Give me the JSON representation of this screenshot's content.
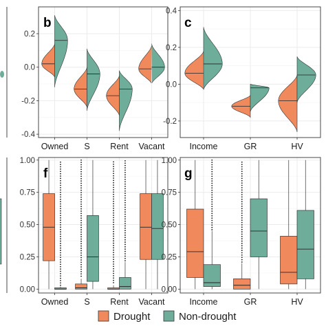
{
  "colors": {
    "drought": "#f08a5d",
    "non_drought": "#6fad9b",
    "grid": "#ebebeb",
    "border": "#333333"
  },
  "legend": {
    "drought_label": "Drought",
    "non_drought_label": "Non-drought",
    "placement": "bottom"
  },
  "chart_data": [
    {
      "panel": "partial-left-top",
      "type": "violin",
      "categories": [],
      "series": []
    },
    {
      "panel": "b",
      "type": "violin",
      "categories": [
        "Owned",
        "S",
        "Rent",
        "Vacant"
      ],
      "ylim": [
        -0.42,
        0.36
      ],
      "yticks": [
        -0.4,
        -0.2,
        0.0,
        0.2
      ],
      "ytick_labels": [
        "-0.4",
        "-0.2",
        "0.0",
        "0.2"
      ],
      "series": [
        {
          "group": "drought",
          "medians": [
            0.02,
            -0.13,
            -0.17,
            -0.01
          ],
          "min": [
            -0.06,
            -0.24,
            -0.29,
            -0.1
          ],
          "max": [
            0.14,
            0.0,
            -0.05,
            0.13
          ]
        },
        {
          "group": "non_drought",
          "medians": [
            0.16,
            -0.04,
            -0.13,
            0.0
          ],
          "min": [
            -0.12,
            -0.26,
            -0.38,
            -0.1
          ],
          "max": [
            0.31,
            0.11,
            -0.02,
            0.14
          ]
        }
      ]
    },
    {
      "panel": "c",
      "type": "violin",
      "categories": [
        "Income",
        "GR",
        "HV"
      ],
      "ylim": [
        -0.29,
        0.42
      ],
      "yticks": [
        -0.2,
        0.0,
        0.2,
        0.4
      ],
      "ytick_labels": [
        "-0.2",
        "0.0",
        "0.2",
        "0.4"
      ],
      "series": [
        {
          "group": "drought",
          "medians": [
            0.06,
            -0.12,
            -0.09
          ],
          "min": [
            -0.03,
            -0.18,
            -0.26
          ],
          "max": [
            0.18,
            -0.06,
            0.05
          ]
        },
        {
          "group": "non_drought",
          "medians": [
            0.11,
            -0.02,
            0.05
          ],
          "min": [
            -0.03,
            -0.15,
            -0.1
          ],
          "max": [
            0.31,
            0.0,
            0.15
          ]
        }
      ]
    },
    {
      "panel": "partial-left-bottom",
      "type": "box",
      "categories": [],
      "series": []
    },
    {
      "panel": "f",
      "type": "box",
      "categories": [
        "Owned",
        "S",
        "Rent",
        "Vacant"
      ],
      "ylim": [
        -0.03,
        1.02
      ],
      "yticks": [
        0.0,
        0.25,
        0.5,
        0.75,
        1.0
      ],
      "ytick_labels": [
        "0.00",
        "0.25",
        "0.50",
        "0.75",
        "1.00"
      ],
      "series": [
        {
          "group": "drought",
          "q1": [
            0.22,
            0.0,
            0.0,
            0.23
          ],
          "median": [
            0.48,
            0.01,
            0.0,
            0.48
          ],
          "q3": [
            0.74,
            0.04,
            0.01,
            0.74
          ],
          "wlow": [
            0.0,
            0.0,
            0.0,
            0.0
          ],
          "whigh": [
            1.0,
            0.08,
            0.03,
            1.0
          ],
          "outliers_from": [
            null,
            0.1,
            0.05,
            null
          ]
        },
        {
          "group": "non_drought",
          "q1": [
            0.0,
            0.06,
            0.0,
            0.23
          ],
          "median": [
            0.0,
            0.25,
            0.02,
            0.47
          ],
          "q3": [
            0.01,
            0.57,
            0.09,
            0.74
          ],
          "wlow": [
            0.0,
            0.0,
            0.0,
            0.0
          ],
          "whigh": [
            0.02,
            1.0,
            0.21,
            1.0
          ],
          "outliers_from": [
            0.03,
            null,
            0.22,
            null
          ]
        }
      ]
    },
    {
      "panel": "g",
      "type": "box",
      "categories": [
        "Income",
        "GR",
        "HV"
      ],
      "ylim": [
        -0.03,
        1.02
      ],
      "yticks": [
        0.0,
        0.25,
        0.5,
        0.75,
        1.0
      ],
      "ytick_labels": [
        "0.00",
        "0.25",
        "0.50",
        "0.75",
        "1.00"
      ],
      "series": [
        {
          "group": "drought",
          "q1": [
            0.09,
            0.0,
            0.04,
            null
          ],
          "median": [
            0.29,
            0.03,
            0.13,
            null
          ],
          "q3": [
            0.62,
            0.08,
            0.41,
            null
          ],
          "wlow": [
            0.0,
            0.0,
            0.0,
            null
          ],
          "whigh": [
            1.0,
            0.2,
            1.0,
            null
          ],
          "outliers_from": [
            null,
            0.21,
            null,
            null
          ]
        },
        {
          "group": "non_drought",
          "q1": [
            0.02,
            0.25,
            0.08,
            null
          ],
          "median": [
            0.05,
            0.45,
            0.31,
            null
          ],
          "q3": [
            0.19,
            0.7,
            0.61,
            null
          ],
          "wlow": [
            0.0,
            0.0,
            0.0,
            null
          ],
          "whigh": [
            0.45,
            1.0,
            1.0,
            null
          ],
          "outliers_from": [
            0.46,
            null,
            null,
            null
          ]
        }
      ]
    }
  ],
  "panel_labels": {
    "b": "b",
    "c": "c",
    "f": "f",
    "g": "g"
  }
}
